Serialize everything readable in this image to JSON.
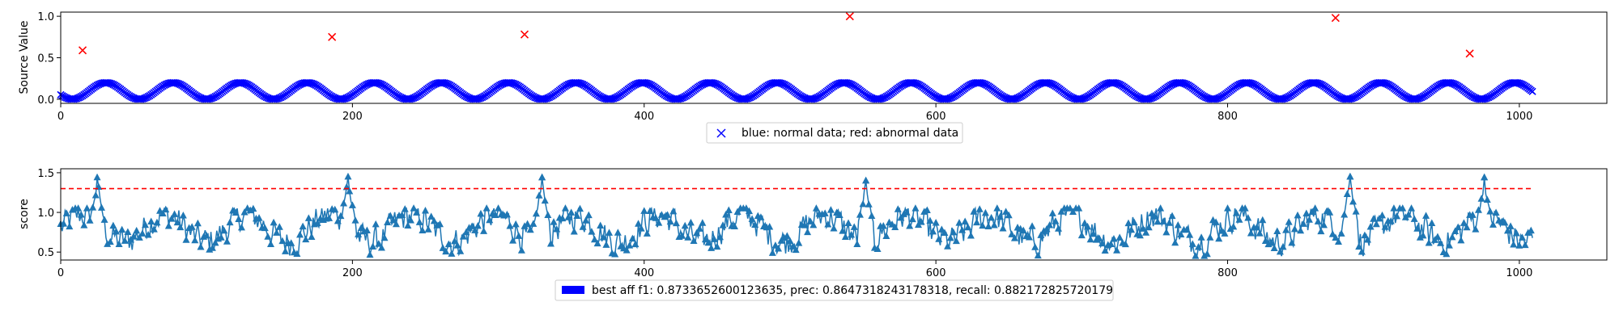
{
  "chart_data": [
    {
      "type": "scatter",
      "xlabel": "",
      "ylabel": "Source Value",
      "xlim": [
        0,
        1060
      ],
      "ylim": [
        -0.05,
        1.05
      ],
      "xticks": [
        0,
        200,
        400,
        600,
        800,
        1000
      ],
      "yticks": [
        0.0,
        0.5,
        1.0
      ],
      "xtick_labels": [
        "0",
        "200",
        "400",
        "600",
        "800",
        "1000"
      ],
      "ytick_labels": [
        "0.0",
        "0.5",
        "1.0"
      ],
      "grid": false,
      "legend": {
        "placement": "below",
        "text": "blue: normal data; red: abnormal data"
      },
      "series": [
        {
          "marker": "x",
          "color": "#0000ff",
          "pattern": {
            "x_start": 0,
            "x_end": 1009,
            "period": 46,
            "min": 0.0,
            "max": 0.2
          }
        },
        {
          "marker": "x",
          "color": "#ff0000",
          "x": [
            15,
            186,
            318,
            541,
            874,
            966
          ],
          "y": [
            0.59,
            0.75,
            0.78,
            1.0,
            0.98,
            0.55
          ]
        }
      ]
    },
    {
      "type": "line",
      "xlabel": "",
      "ylabel": "score",
      "xlim": [
        0,
        1060
      ],
      "ylim": [
        0.4,
        1.55
      ],
      "xticks": [
        0,
        200,
        400,
        600,
        800,
        1000
      ],
      "yticks": [
        0.5,
        1.0,
        1.5
      ],
      "xtick_labels": [
        "0",
        "200",
        "400",
        "600",
        "800",
        "1000"
      ],
      "ytick_labels": [
        "0.5",
        "1.0",
        "1.5"
      ],
      "grid": false,
      "threshold": {
        "y": 1.3,
        "x_start": 0,
        "x_end": 1009,
        "color": "#ff0000",
        "style": "dashed"
      },
      "legend": {
        "placement": "below",
        "text": "best aff f1: 0.8733652600123635, prec: 0.8647318243178318, recall: 0.882172825720179",
        "color": "#0000ff"
      },
      "series": [
        {
          "color": "#1f77b4",
          "marker": "^",
          "peaks": [
            {
              "x": 25,
              "y": 1.44
            },
            {
              "x": 197,
              "y": 1.45
            },
            {
              "x": 330,
              "y": 1.44
            },
            {
              "x": 552,
              "y": 1.4
            },
            {
              "x": 884,
              "y": 1.45
            },
            {
              "x": 976,
              "y": 1.44
            }
          ],
          "baseline": {
            "mean": 0.8,
            "min": 0.45,
            "max": 1.05
          }
        }
      ]
    }
  ]
}
